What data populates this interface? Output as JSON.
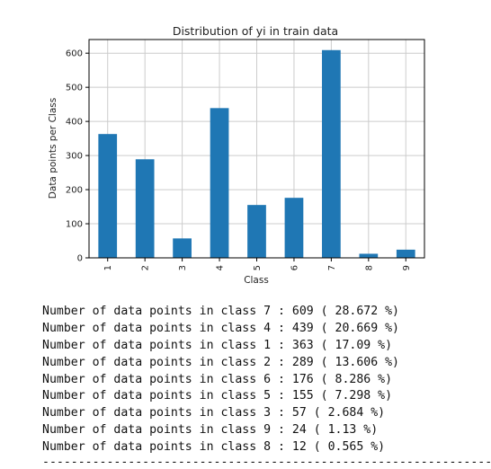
{
  "chart_data": {
    "type": "bar",
    "title": "Distribution of yi in train data",
    "xlabel": "Class",
    "ylabel": "Data points per Class",
    "categories": [
      "1",
      "2",
      "3",
      "4",
      "5",
      "6",
      "7",
      "8",
      "9"
    ],
    "values": [
      363,
      289,
      57,
      439,
      155,
      176,
      609,
      12,
      24
    ],
    "yticks": [
      "0",
      "100",
      "200",
      "300",
      "400",
      "500",
      "600"
    ],
    "ylim": [
      0,
      640
    ],
    "grid": true,
    "bar_color": "#1f77b4",
    "grid_color": "#cccccc"
  },
  "output_lines": [
    "Number of data points in class 7 : 609 ( 28.672 %)",
    "Number of data points in class 4 : 439 ( 20.669 %)",
    "Number of data points in class 1 : 363 ( 17.09 %)",
    "Number of data points in class 2 : 289 ( 13.606 %)",
    "Number of data points in class 6 : 176 ( 8.286 %)",
    "Number of data points in class 5 : 155 ( 7.298 %)",
    "Number of data points in class 3 : 57 ( 2.684 %)",
    "Number of data points in class 9 : 24 ( 1.13 %)",
    "Number of data points in class 8 : 12 ( 0.565 %)"
  ],
  "separator": "----------------------------------------------------------------------------------------------------"
}
